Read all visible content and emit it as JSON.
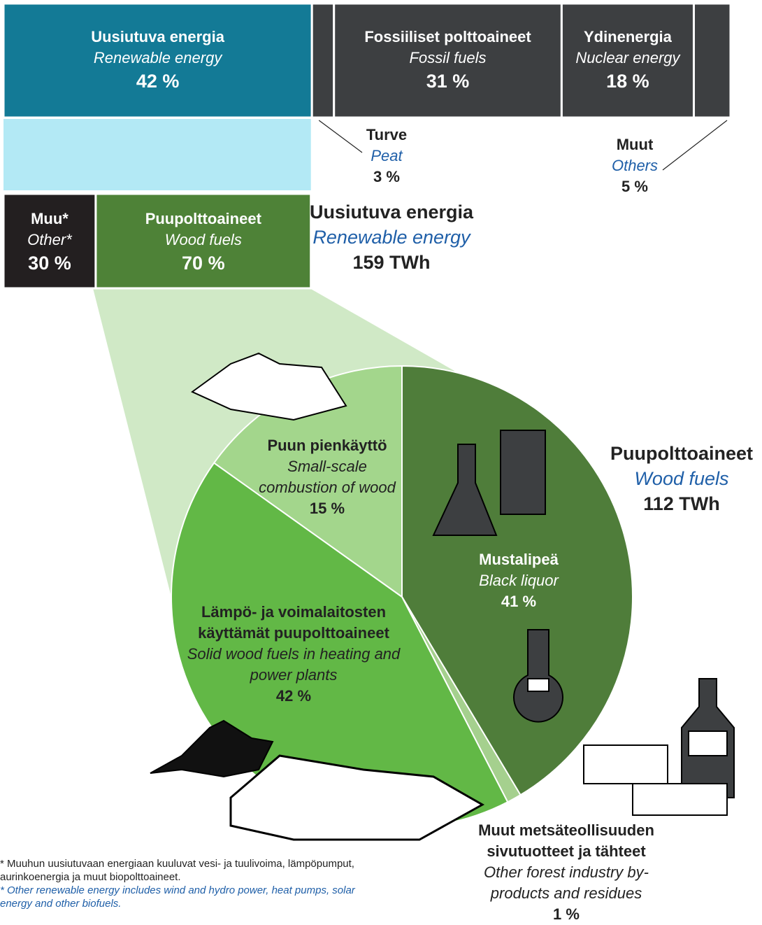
{
  "chart_data": [
    {
      "type": "stacked-bar",
      "categories": [
        "Uusiutuva energia",
        "Turve",
        "Fossiiliset polttoaineet",
        "Ydinenergia",
        "Muut"
      ],
      "categories_en": [
        "Renewable energy",
        "Peat",
        "Fossil fuels",
        "Nuclear energy",
        "Others"
      ],
      "values": [
        42,
        3,
        31,
        18,
        5
      ],
      "value_labels": [
        "42 %",
        "3 %",
        "31 %",
        "18 %",
        "5 %"
      ],
      "colors": [
        "#137a96",
        "#3d3f41",
        "#3d3f41",
        "#3d3f41",
        "#3d3f41"
      ]
    },
    {
      "type": "stacked-bar",
      "title": "Uusiutuva energia",
      "subtitle": "Renewable energy",
      "total": "159 TWh",
      "categories": [
        "Muu*",
        "Puupolttoaineet"
      ],
      "categories_en": [
        "Other*",
        "Wood fuels"
      ],
      "values": [
        30,
        70
      ],
      "value_labels": [
        "30 %",
        "70 %"
      ],
      "colors": [
        "#231f20",
        "#4e8237"
      ]
    },
    {
      "type": "pie",
      "title": "Puupolttoaineet",
      "subtitle": "Wood fuels",
      "total": "112 TWh",
      "categories": [
        "Mustalipeä",
        "Muut metsäteollisuuden sivutuotteet ja tähteet",
        "Lämpö- ja voimalaitosten käyttämät puupolttoaineet",
        "Puun pienkäyttö"
      ],
      "categories_en": [
        "Black liquor",
        "Other forest industry by-products and residues",
        "Solid wood fuels in heating and power plants",
        "Small-scale combustion of wood"
      ],
      "values": [
        41,
        1,
        42,
        15
      ],
      "value_labels": [
        "41 %",
        "1 %",
        "42 %",
        "15 %"
      ],
      "colors": [
        "#4f7d3a",
        "#a5d08e",
        "#62b846",
        "#a3d68c"
      ]
    }
  ],
  "footnote": {
    "fi": "* Muuhun uusiutuvaan energiaan kuuluvat vesi- ja tuulivoima, lämpöpumput, aurinkoenergia ja muut biopolttoaineet.",
    "en": "* Other renewable energy includes wind and hydro power, heat pumps, solar energy and other biofuels."
  }
}
